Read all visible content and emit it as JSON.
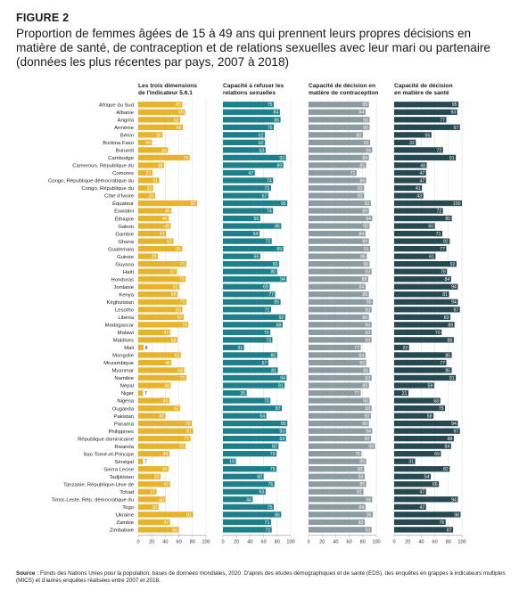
{
  "figure_label": "FIGURE 2",
  "title": "Proportion de femmes âgées de 15 à 49 ans qui prennent leurs propres décisions en matière de santé, de contraception et de relations sexuelles avec leur mari ou partenaire (données les plus récentes par pays, 2007 à 2018)",
  "source_label": "Source :",
  "source_text": "Fonds des Nations Unies pour la population, bases de données mondiales, 2020. D'après des études démographiques et de santé (EDS), des enquêtes en grappes à indicateurs multiples (MICS) et d'autres enquêtes réalisées entre 2007 et 2018.",
  "chart_data": {
    "type": "bar",
    "orientation": "horizontal",
    "xlim": [
      0,
      100
    ],
    "ticks": [
      0,
      20,
      40,
      60,
      80,
      100
    ],
    "categories": [
      "Afrique du Sud",
      "Albanie",
      "Angola",
      "Arménie",
      "Bénin",
      "Burkina Faso",
      "Burundi",
      "Cambodge",
      "Cameroun, République du",
      "Comores",
      "Congo, République démocratique du",
      "Congo, République du",
      "Côte d'Ivoire",
      "Équateur",
      "Eswatini",
      "Éthiopie",
      "Gabon",
      "Gambie",
      "Ghana",
      "Guatemala",
      "Guinée",
      "Guyana",
      "Haïti",
      "Honduras",
      "Jordanie",
      "Kenya",
      "Kirghizistan",
      "Lesotho",
      "Libéria",
      "Madagascar",
      "Malawi",
      "Maldives",
      "Mali",
      "Mongolie",
      "Mozambique",
      "Myanmar",
      "Namibie",
      "Népal",
      "Niger",
      "Nigéria",
      "Ouganda",
      "Pakistan",
      "Panama",
      "Philippines",
      "République dominicaine",
      "Rwanda",
      "Sao Tomé-et-Principe",
      "Sénégal",
      "Sierra Leone",
      "Tadjikistan",
      "Tanzanie, République-Unie de",
      "Tchad",
      "Timor-Leste, Rép. démocratique du",
      "Togo",
      "Ukraine",
      "Zambie",
      "Zimbabwe"
    ],
    "series": [
      {
        "name": "Les trois dimensions de l'indicateur 5.6.1",
        "color": "#e8b22b",
        "values": [
          65,
          69,
          62,
          66,
          36,
          20,
          44,
          76,
          38,
          21,
          31,
          22,
          25,
          87,
          49,
          45,
          48,
          41,
          52,
          65,
          29,
          71,
          57,
          70,
          61,
          58,
          71,
          65,
          67,
          74,
          47,
          58,
          8,
          63,
          49,
          68,
          71,
          48,
          7,
          46,
          62,
          40,
          79,
          81,
          77,
          70,
          46,
          7,
          45,
          33,
          47,
          27,
          40,
          30,
          81,
          47,
          60
        ]
      },
      {
        "name": "Capacité à refuser les relations sexuelles",
        "color": "#1d7f8a",
        "values": [
          75,
          84,
          85,
          75,
          62,
          62,
          63,
          93,
          89,
          47,
          74,
          71,
          67,
          95,
          74,
          55,
          86,
          54,
          72,
          89,
          55,
          83,
          80,
          94,
          69,
          77,
          85,
          71,
          92,
          88,
          70,
          73,
          31,
          80,
          67,
          81,
          94,
          91,
          35,
          70,
          87,
          64,
          95,
          93,
          93,
          82,
          79,
          19,
          79,
          60,
          76,
          63,
          44,
          75,
          86,
          71,
          72
        ]
      },
      {
        "name": "Capacité de décision en matière de contraception",
        "color": "#8c9ba1",
        "values": [
          89,
          84,
          90,
          90,
          80,
          91,
          94,
          89,
          85,
          71,
          85,
          82,
          82,
          92,
          89,
          94,
          90,
          84,
          89,
          91,
          86,
          90,
          93,
          88,
          84,
          89,
          95,
          93,
          89,
          93,
          93,
          93,
          77,
          84,
          85,
          90,
          93,
          89,
          77,
          90,
          93,
          92,
          89,
          94,
          92,
          98,
          78,
          85,
          82,
          83,
          85,
          81,
          94,
          84,
          95,
          83,
          93
        ]
      },
      {
        "name": "Capacité de décision en matière de santé",
        "color": "#264851",
        "values": [
          95,
          93,
          77,
          97,
          55,
          32,
          72,
          91,
          48,
          47,
          47,
          41,
          43,
          100,
          72,
          85,
          60,
          71,
          82,
          77,
          61,
          92,
          78,
          84,
          94,
          81,
          94,
          97,
          83,
          89,
          70,
          88,
          22,
          85,
          77,
          85,
          91,
          59,
          21,
          68,
          75,
          58,
          94,
          97,
          88,
          84,
          69,
          31,
          82,
          54,
          66,
          47,
          94,
          47,
          98,
          76,
          87
        ]
      }
    ]
  }
}
